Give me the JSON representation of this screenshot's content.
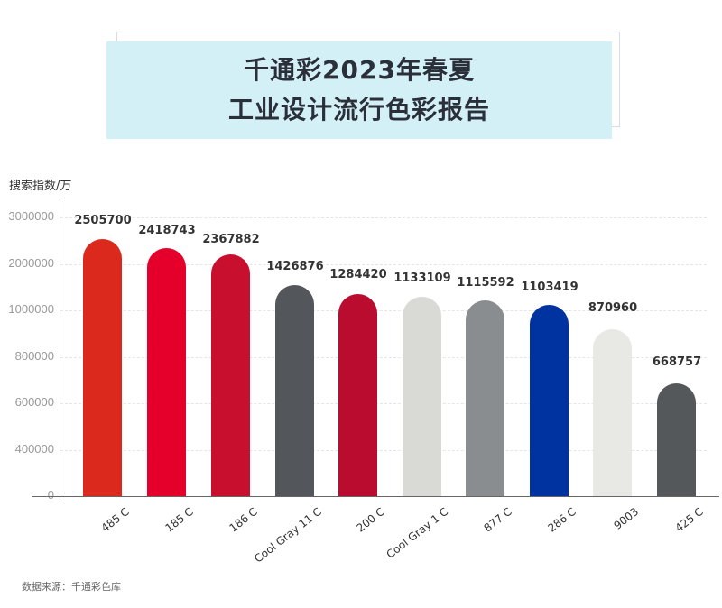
{
  "header": {
    "title_line1": "千通彩2023年春夏",
    "title_line2": "工业设计流行色彩报告"
  },
  "footer": {
    "source": "数据来源：千通彩色库"
  },
  "chart_data": {
    "type": "bar",
    "title": "千通彩2023年春夏工业设计流行色彩报告",
    "xlabel": "",
    "ylabel": "搜索指数/万",
    "categories": [
      "485 C",
      "185 C",
      "186 C",
      "Cool Gray 11 C",
      "200 C",
      "Cool Gray 1 C",
      "877 C",
      "286 C",
      "9003",
      "425 C"
    ],
    "values": [
      2505700,
      2418743,
      2367882,
      1426876,
      1284420,
      1133109,
      1115592,
      1103419,
      870960,
      668757
    ],
    "value_labels": [
      "2505700",
      "2418743",
      "2367882",
      "1426876",
      "1284420",
      "1133109",
      "1115592",
      "1103419",
      "870960",
      "668757"
    ],
    "colors": [
      "#dc291e",
      "#e4002b",
      "#c8102e",
      "#53565a",
      "#ba0c2f",
      "#d9d9d6",
      "#8a8d8f",
      "#0033a0",
      "#e8e9e4",
      "#54585a"
    ],
    "yticks": [
      "3000000",
      "2000000",
      "1000000",
      "800000",
      "600000",
      "400000",
      "0"
    ],
    "ylim": [
      0,
      3000000
    ],
    "grid": true,
    "legend": "none"
  }
}
